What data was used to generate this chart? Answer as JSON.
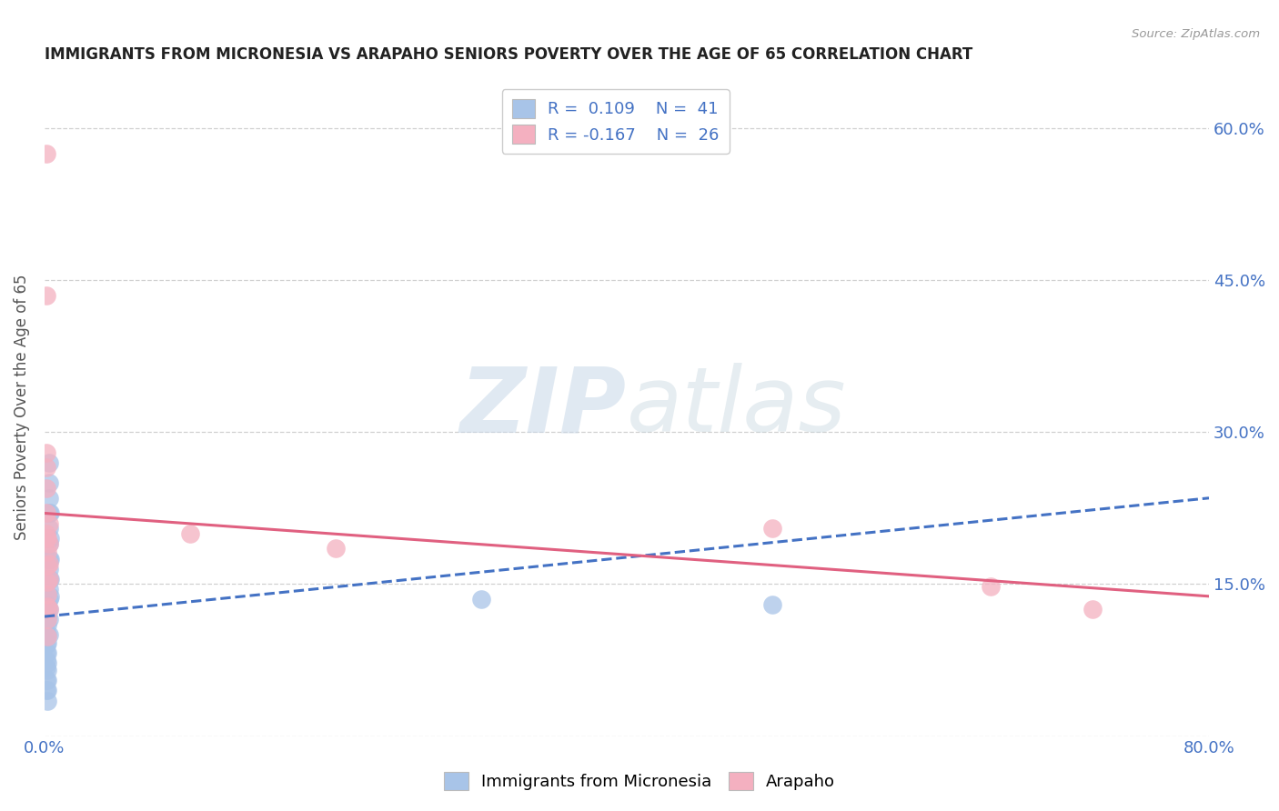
{
  "title": "IMMIGRANTS FROM MICRONESIA VS ARAPAHO SENIORS POVERTY OVER THE AGE OF 65 CORRELATION CHART",
  "source": "Source: ZipAtlas.com",
  "ylabel": "Seniors Poverty Over the Age of 65",
  "xlim": [
    0,
    0.8
  ],
  "ylim": [
    0,
    0.65
  ],
  "watermark_zip": "ZIP",
  "watermark_atlas": "atlas",
  "legend_r1": "R =  0.109",
  "legend_n1": "N =  41",
  "legend_r2": "R = -0.167",
  "legend_n2": "N =  26",
  "blue_color": "#a8c4e8",
  "pink_color": "#f4b0c0",
  "blue_line_color": "#4472c4",
  "pink_line_color": "#e06080",
  "blue_scatter": [
    [
      0.001,
      0.115
    ],
    [
      0.001,
      0.1
    ],
    [
      0.001,
      0.09
    ],
    [
      0.001,
      0.082
    ],
    [
      0.001,
      0.075
    ],
    [
      0.001,
      0.068
    ],
    [
      0.001,
      0.055
    ],
    [
      0.001,
      0.045
    ],
    [
      0.002,
      0.13
    ],
    [
      0.002,
      0.125
    ],
    [
      0.002,
      0.118
    ],
    [
      0.002,
      0.11
    ],
    [
      0.002,
      0.1
    ],
    [
      0.002,
      0.092
    ],
    [
      0.002,
      0.082
    ],
    [
      0.002,
      0.072
    ],
    [
      0.002,
      0.065
    ],
    [
      0.002,
      0.055
    ],
    [
      0.002,
      0.045
    ],
    [
      0.002,
      0.035
    ],
    [
      0.003,
      0.27
    ],
    [
      0.003,
      0.25
    ],
    [
      0.003,
      0.235
    ],
    [
      0.003,
      0.22
    ],
    [
      0.003,
      0.205
    ],
    [
      0.003,
      0.19
    ],
    [
      0.003,
      0.175
    ],
    [
      0.003,
      0.165
    ],
    [
      0.003,
      0.155
    ],
    [
      0.003,
      0.145
    ],
    [
      0.003,
      0.135
    ],
    [
      0.003,
      0.125
    ],
    [
      0.003,
      0.115
    ],
    [
      0.003,
      0.1
    ],
    [
      0.004,
      0.22
    ],
    [
      0.004,
      0.195
    ],
    [
      0.004,
      0.175
    ],
    [
      0.004,
      0.155
    ],
    [
      0.004,
      0.138
    ],
    [
      0.3,
      0.135
    ],
    [
      0.5,
      0.13
    ]
  ],
  "pink_scatter": [
    [
      0.001,
      0.575
    ],
    [
      0.001,
      0.435
    ],
    [
      0.001,
      0.28
    ],
    [
      0.001,
      0.265
    ],
    [
      0.001,
      0.245
    ],
    [
      0.001,
      0.22
    ],
    [
      0.001,
      0.2
    ],
    [
      0.001,
      0.195
    ],
    [
      0.002,
      0.195
    ],
    [
      0.002,
      0.182
    ],
    [
      0.002,
      0.168
    ],
    [
      0.002,
      0.152
    ],
    [
      0.002,
      0.14
    ],
    [
      0.002,
      0.128
    ],
    [
      0.002,
      0.115
    ],
    [
      0.002,
      0.098
    ],
    [
      0.003,
      0.21
    ],
    [
      0.003,
      0.19
    ],
    [
      0.003,
      0.17
    ],
    [
      0.003,
      0.155
    ],
    [
      0.003,
      0.125
    ],
    [
      0.1,
      0.2
    ],
    [
      0.2,
      0.185
    ],
    [
      0.5,
      0.205
    ],
    [
      0.65,
      0.148
    ],
    [
      0.72,
      0.125
    ]
  ],
  "blue_line_x": [
    0.0,
    0.8
  ],
  "blue_line_y": [
    0.118,
    0.235
  ],
  "pink_line_x": [
    0.0,
    0.8
  ],
  "pink_line_y": [
    0.22,
    0.138
  ],
  "background_color": "#ffffff",
  "grid_color": "#d0d0d0"
}
